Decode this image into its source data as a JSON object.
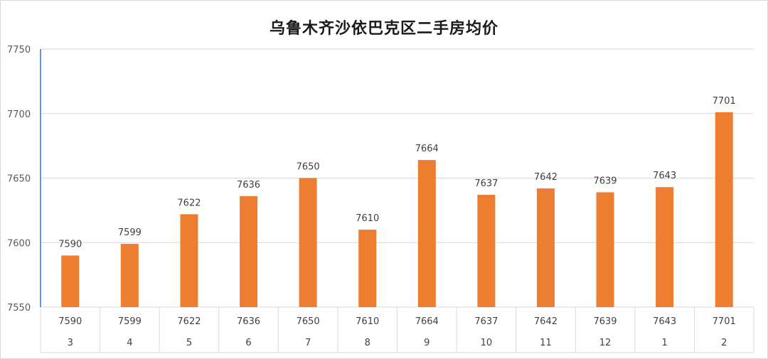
{
  "chart_data": {
    "type": "bar",
    "title": "乌鲁木齐沙依巴克区二手房均价",
    "categories": [
      "3",
      "4",
      "5",
      "6",
      "7",
      "8",
      "9",
      "10",
      "11",
      "12",
      "1",
      "2"
    ],
    "values": [
      7590,
      7599,
      7622,
      7636,
      7650,
      7610,
      7664,
      7637,
      7642,
      7639,
      7643,
      7701
    ],
    "ylim": [
      7550,
      7750
    ],
    "yticks": [
      7550,
      7600,
      7650,
      7700,
      7750
    ],
    "grid": true,
    "data_labels": true,
    "data_table": true,
    "colors": {
      "bar": "#ED7D31",
      "axis": "#5B9BD5",
      "grid": "#d9d9d9"
    }
  }
}
